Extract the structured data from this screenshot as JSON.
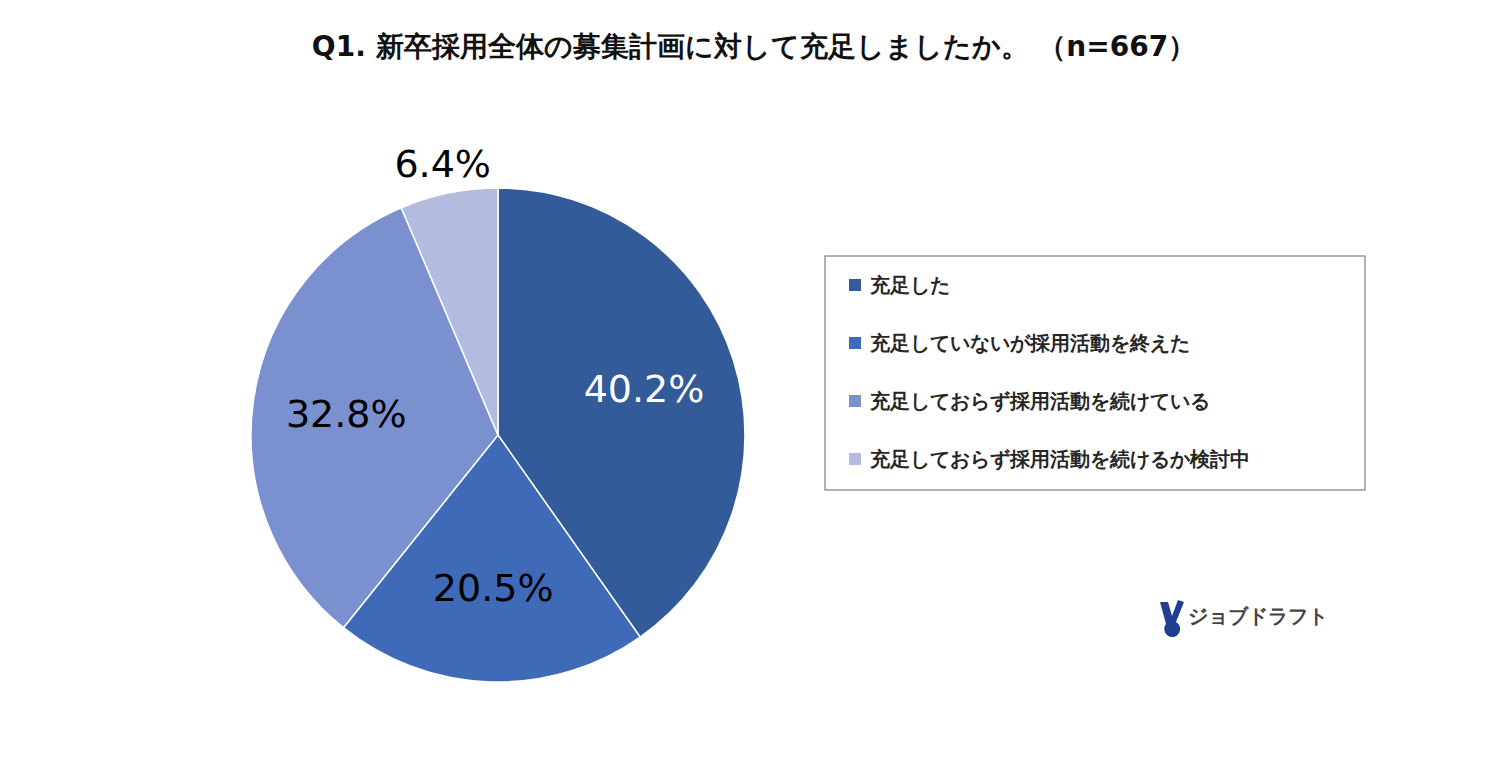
{
  "chart_data": {
    "type": "pie",
    "title": "Q1. 新卒採用全体の募集計画に対して充足しましたか。 （n=667）",
    "categories": [
      "充足した",
      "充足していないが採用活動を終えた",
      "充足しておらず採用活動を続けている",
      "充足しておらず採用活動を続けるか検討中"
    ],
    "values": [
      40.2,
      20.5,
      32.8,
      6.4
    ],
    "value_labels": [
      "40.2%",
      "20.5%",
      "32.8%",
      "6.4%"
    ],
    "colors": [
      "#335a99",
      "#3e6ab8",
      "#7a90cf",
      "#b3bcdf"
    ],
    "data_labels": true,
    "legend": "right",
    "annotations": [
      "ジョブドラフト"
    ]
  }
}
